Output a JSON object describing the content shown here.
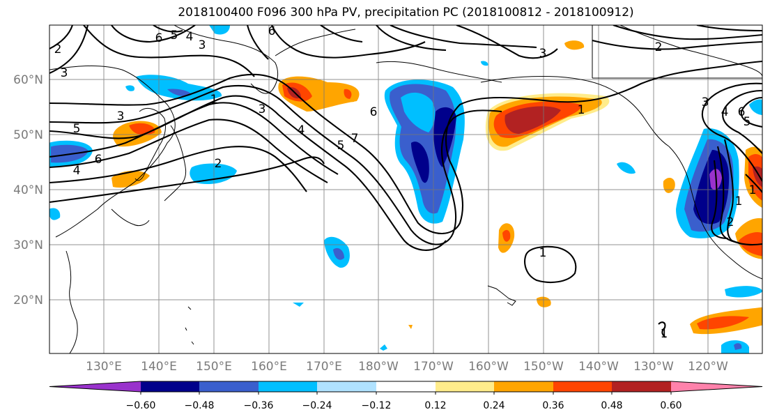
{
  "title": "2018100400 F096 300 hPa PV, precipitation PC (2018100812 - 2018100912)",
  "latitude_labels": [
    "60°N",
    "50°N",
    "40°N",
    "30°N",
    "20°N"
  ],
  "longitude_labels": [
    "130°E",
    "140°E",
    "150°E",
    "160°E",
    "170°E",
    "180°W",
    "170°W",
    "160°W",
    "150°W",
    "140°W",
    "130°W",
    "120°W"
  ],
  "pv_contour_labels": [
    "2",
    "3",
    "6",
    "5",
    "4",
    "3",
    "6",
    "1",
    "3",
    "5",
    "6",
    "4",
    "2",
    "3",
    "4",
    "5",
    "7",
    "6",
    "3",
    "1",
    "1",
    "2",
    "3",
    "4",
    "6",
    "5",
    "1",
    "1",
    "2",
    "1"
  ],
  "colorbar": {
    "ticks": [
      "−0.60",
      "−0.48",
      "−0.36",
      "−0.24",
      "−0.12",
      "0.12",
      "0.24",
      "0.36",
      "0.48",
      "0.60"
    ],
    "colors": [
      "#9932cc",
      "#00008b",
      "#3a5fcd",
      "#00bfff",
      "#b0e2ff",
      "#ffffff",
      "#ffec8b",
      "#ffa500",
      "#ff4500",
      "#b22222",
      "#ff82ab"
    ]
  }
}
